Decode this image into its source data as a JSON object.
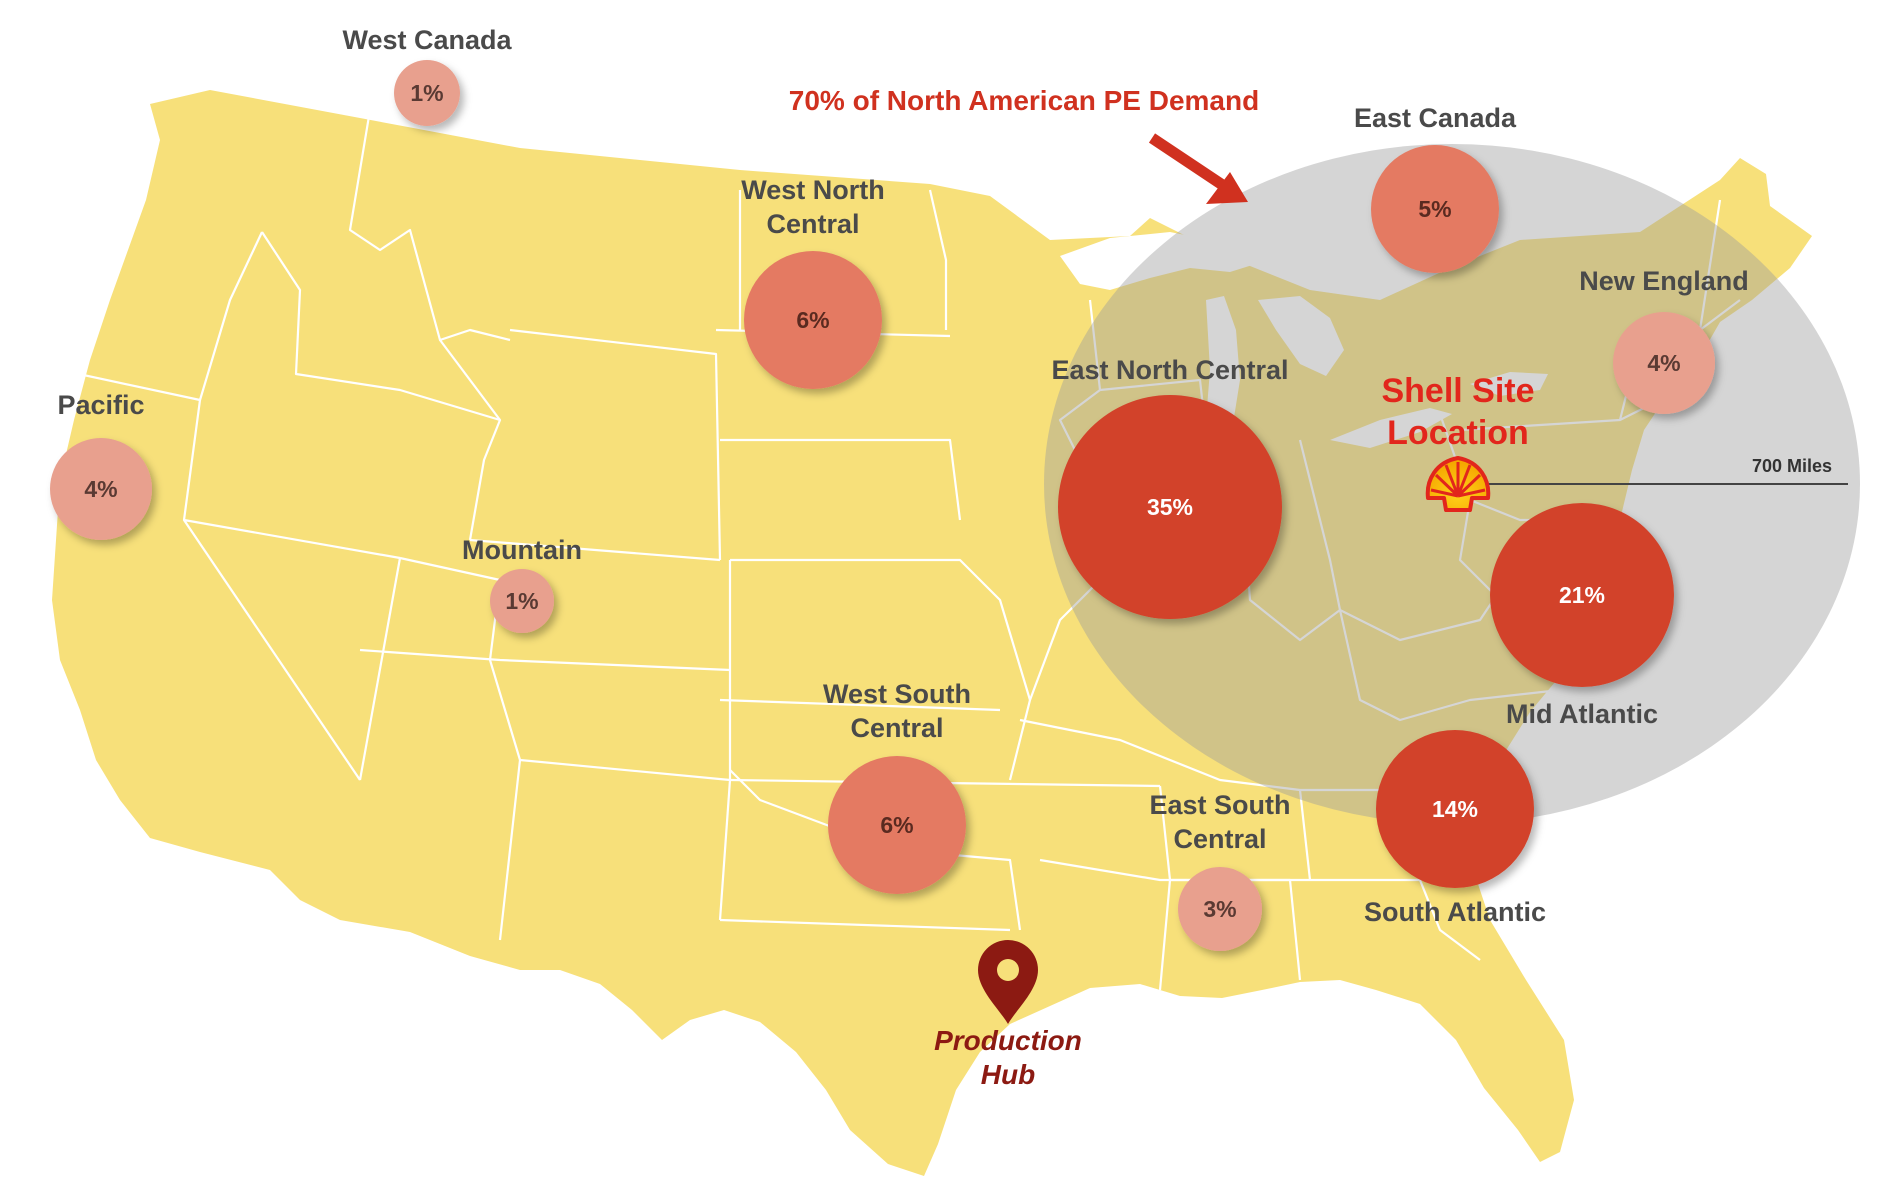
{
  "colors": {
    "map_fill": "#f7e07a",
    "radius_circle": "#a3a3a3",
    "bubble_large": "#d2432a",
    "bubble_medium": "#e47a62",
    "bubble_small": "#e8a08e",
    "accent_red": "#d0311f",
    "hub_marker": "#8c1a12"
  },
  "callout": {
    "text": "70% of North American PE Demand"
  },
  "shell_site": {
    "line1": "Shell Site",
    "line2": "Location",
    "icon": "shell-logo-icon"
  },
  "radius": {
    "label": "700 Miles"
  },
  "production_hub": {
    "line1": "Production",
    "line2": "Hub",
    "icon": "map-pin-icon"
  },
  "chart_data": {
    "type": "bubble-map",
    "units": "% of North American PE demand",
    "regions": [
      {
        "name": "West Canada",
        "value": 1
      },
      {
        "name": "West North Central",
        "value": 6
      },
      {
        "name": "East Canada",
        "value": 5
      },
      {
        "name": "New England",
        "value": 4
      },
      {
        "name": "Pacific",
        "value": 4
      },
      {
        "name": "East North Central",
        "value": 35
      },
      {
        "name": "Mountain",
        "value": 1
      },
      {
        "name": "Mid Atlantic",
        "value": 21
      },
      {
        "name": "West South Central",
        "value": 6
      },
      {
        "name": "East South Central",
        "value": 3
      },
      {
        "name": "South Atlantic",
        "value": 14
      }
    ]
  },
  "labels": {
    "west_canada": "West Canada",
    "west_north_central_1": "West North",
    "west_north_central_2": "Central",
    "east_canada": "East Canada",
    "new_england": "New England",
    "pacific": "Pacific",
    "east_north_central": "East North Central",
    "mountain": "Mountain",
    "mid_atlantic": "Mid Atlantic",
    "west_south_central_1": "West South",
    "west_south_central_2": "Central",
    "east_south_central_1": "East South",
    "east_south_central_2": "Central",
    "south_atlantic": "South Atlantic"
  },
  "percents": {
    "west_canada": "1%",
    "west_north_central": "6%",
    "east_canada": "5%",
    "new_england": "4%",
    "pacific": "4%",
    "east_north_central": "35%",
    "mountain": "1%",
    "mid_atlantic": "21%",
    "west_south_central": "6%",
    "east_south_central": "3%",
    "south_atlantic": "14%"
  }
}
